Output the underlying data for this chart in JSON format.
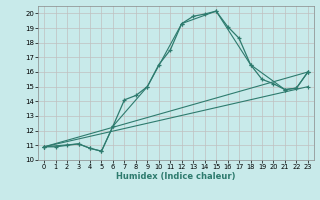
{
  "xlabel": "Humidex (Indice chaleur)",
  "bg_color": "#c8eaea",
  "grid_color": "#c0c0c0",
  "line_color": "#2e7b6e",
  "xlim": [
    -0.5,
    23.5
  ],
  "ylim": [
    10.0,
    20.5
  ],
  "xticks": [
    0,
    1,
    2,
    3,
    4,
    5,
    6,
    7,
    8,
    9,
    10,
    11,
    12,
    13,
    14,
    15,
    16,
    17,
    18,
    19,
    20,
    21,
    22,
    23
  ],
  "yticks": [
    10,
    11,
    12,
    13,
    14,
    15,
    16,
    17,
    18,
    19,
    20
  ],
  "lines": [
    {
      "x": [
        0,
        1,
        2,
        3,
        4,
        5,
        6,
        7,
        8,
        9,
        10,
        11,
        12,
        13,
        14,
        15,
        16,
        17,
        18,
        19,
        20,
        21,
        22,
        23
      ],
      "y": [
        10.9,
        10.9,
        11.0,
        11.1,
        10.8,
        10.6,
        12.3,
        14.1,
        14.4,
        15.0,
        16.5,
        17.5,
        19.3,
        19.8,
        19.95,
        20.15,
        19.1,
        18.3,
        16.5,
        15.5,
        15.2,
        14.8,
        14.9,
        16.0
      ]
    },
    {
      "x": [
        0,
        23
      ],
      "y": [
        10.9,
        15.0
      ]
    },
    {
      "x": [
        0,
        23
      ],
      "y": [
        10.9,
        16.0
      ]
    },
    {
      "x": [
        0,
        3,
        4,
        5,
        6,
        9,
        12,
        15,
        18,
        21,
        22,
        23
      ],
      "y": [
        10.9,
        11.1,
        10.8,
        10.6,
        12.3,
        15.0,
        19.3,
        20.15,
        16.5,
        14.8,
        14.9,
        16.0
      ]
    }
  ]
}
